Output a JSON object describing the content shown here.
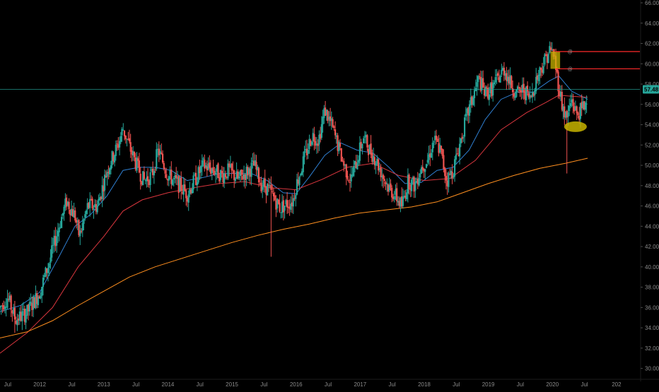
{
  "chart_data": {
    "type": "candlestick",
    "period": "weekly",
    "colors": {
      "background": "#000000",
      "up": "#26a69a",
      "down": "#ef5350",
      "ma_blue": "#2f7fd1",
      "ma_red": "#d9363e",
      "ma_orange": "#ff8f1f",
      "hline": "#26a69a",
      "level_red": "#ff2b2b",
      "zone": "#c8b400",
      "badge": "#26a69a",
      "tick": "#8a8a8a"
    },
    "y_range": [
      29.0,
      66.0
    ],
    "y_ticks": [
      "30.00",
      "32.00",
      "34.00",
      "36.00",
      "38.00",
      "40.00",
      "42.00",
      "44.00",
      "46.00",
      "48.00",
      "50.00",
      "52.00",
      "54.00",
      "56.00",
      "58.00",
      "60.00",
      "62.00",
      "64.00",
      "66.00"
    ],
    "x_range": [
      2011.38,
      2021.2
    ],
    "x_ticks": [
      {
        "label": "Jul",
        "t": 2011.5
      },
      {
        "label": "2012",
        "t": 2012.0
      },
      {
        "label": "Jul",
        "t": 2012.5
      },
      {
        "label": "2013",
        "t": 2013.0
      },
      {
        "label": "Jul",
        "t": 2013.5
      },
      {
        "label": "2014",
        "t": 2014.0
      },
      {
        "label": "Jul",
        "t": 2014.5
      },
      {
        "label": "2015",
        "t": 2015.0
      },
      {
        "label": "Jul",
        "t": 2015.5
      },
      {
        "label": "2016",
        "t": 2016.0
      },
      {
        "label": "Jul",
        "t": 2016.5
      },
      {
        "label": "2017",
        "t": 2017.0
      },
      {
        "label": "Jul",
        "t": 2017.5
      },
      {
        "label": "2018",
        "t": 2018.0
      },
      {
        "label": "Jul",
        "t": 2018.5
      },
      {
        "label": "2019",
        "t": 2019.0
      },
      {
        "label": "Jul",
        "t": 2019.5
      },
      {
        "label": "2020",
        "t": 2020.0
      },
      {
        "label": "Jul",
        "t": 2020.5
      },
      {
        "label": "202",
        "t": 2021.0
      }
    ],
    "anchors": [
      [
        2011.38,
        36.0
      ],
      [
        2011.5,
        37.0
      ],
      [
        2011.62,
        34.8
      ],
      [
        2011.8,
        35.5
      ],
      [
        2012.0,
        37.5
      ],
      [
        2012.15,
        40.5
      ],
      [
        2012.3,
        44.0
      ],
      [
        2012.42,
        46.5
      ],
      [
        2012.55,
        45.0
      ],
      [
        2012.62,
        43.0
      ],
      [
        2012.75,
        46.0
      ],
      [
        2012.9,
        46.0
      ],
      [
        2013.05,
        49.5
      ],
      [
        2013.22,
        52.0
      ],
      [
        2013.3,
        53.6
      ],
      [
        2013.42,
        51.5
      ],
      [
        2013.5,
        50.2
      ],
      [
        2013.62,
        48.5
      ],
      [
        2013.75,
        49.0
      ],
      [
        2013.85,
        51.5
      ],
      [
        2014.0,
        49.0
      ],
      [
        2014.15,
        48.2
      ],
      [
        2014.3,
        47.2
      ],
      [
        2014.4,
        48.3
      ],
      [
        2014.55,
        50.0
      ],
      [
        2014.7,
        49.6
      ],
      [
        2014.85,
        49.0
      ],
      [
        2014.95,
        49.5
      ],
      [
        2015.1,
        48.6
      ],
      [
        2015.2,
        49.2
      ],
      [
        2015.35,
        50.0
      ],
      [
        2015.45,
        48.2
      ],
      [
        2015.55,
        47.8
      ],
      [
        2015.65,
        46.8
      ],
      [
        2015.75,
        45.8
      ],
      [
        2015.85,
        46.2
      ],
      [
        2015.95,
        46.5
      ],
      [
        2016.0,
        48.0
      ],
      [
        2016.12,
        50.5
      ],
      [
        2016.25,
        53.0
      ],
      [
        2016.35,
        52.5
      ],
      [
        2016.45,
        55.5
      ],
      [
        2016.55,
        54.0
      ],
      [
        2016.65,
        52.0
      ],
      [
        2016.75,
        50.0
      ],
      [
        2016.85,
        48.5
      ],
      [
        2016.95,
        50.5
      ],
      [
        2017.05,
        52.8
      ],
      [
        2017.15,
        51.5
      ],
      [
        2017.25,
        50.5
      ],
      [
        2017.35,
        49.0
      ],
      [
        2017.45,
        47.8
      ],
      [
        2017.55,
        47.0
      ],
      [
        2017.65,
        46.0
      ],
      [
        2017.75,
        48.5
      ],
      [
        2017.85,
        48.0
      ],
      [
        2017.95,
        49.8
      ],
      [
        2018.05,
        50.5
      ],
      [
        2018.15,
        52.5
      ],
      [
        2018.25,
        51.5
      ],
      [
        2018.35,
        48.5
      ],
      [
        2018.45,
        49.5
      ],
      [
        2018.55,
        52.0
      ],
      [
        2018.65,
        54.5
      ],
      [
        2018.75,
        56.5
      ],
      [
        2018.85,
        58.5
      ],
      [
        2018.95,
        57.0
      ],
      [
        2019.05,
        57.5
      ],
      [
        2019.15,
        58.5
      ],
      [
        2019.25,
        59.5
      ],
      [
        2019.35,
        58.0
      ],
      [
        2019.45,
        57.0
      ],
      [
        2019.55,
        57.5
      ],
      [
        2019.65,
        56.5
      ],
      [
        2019.75,
        58.5
      ],
      [
        2019.85,
        60.0
      ],
      [
        2019.95,
        61.3
      ],
      [
        2020.02,
        61.0
      ],
      [
        2020.08,
        58.5
      ],
      [
        2020.15,
        56.0
      ],
      [
        2020.22,
        54.5
      ],
      [
        2020.3,
        56.5
      ],
      [
        2020.38,
        55.0
      ],
      [
        2020.46,
        55.5
      ],
      [
        2020.52,
        56.2
      ],
      [
        2020.55,
        57.5
      ]
    ],
    "moving_averages": [
      {
        "color": "ma_blue",
        "points": [
          [
            2011.38,
            35.6
          ],
          [
            2011.7,
            36.2
          ],
          [
            2012.0,
            37.5
          ],
          [
            2012.3,
            41.0
          ],
          [
            2012.55,
            44.0
          ],
          [
            2012.8,
            45.2
          ],
          [
            2013.05,
            47.0
          ],
          [
            2013.3,
            49.5
          ],
          [
            2013.55,
            49.8
          ],
          [
            2013.8,
            49.8
          ],
          [
            2014.05,
            49.5
          ],
          [
            2014.3,
            48.5
          ],
          [
            2014.55,
            48.8
          ],
          [
            2014.8,
            49.2
          ],
          [
            2015.05,
            49.2
          ],
          [
            2015.3,
            49.2
          ],
          [
            2015.55,
            48.5
          ],
          [
            2015.8,
            47.3
          ],
          [
            2016.0,
            47.2
          ],
          [
            2016.2,
            48.8
          ],
          [
            2016.45,
            51.0
          ],
          [
            2016.7,
            52.2
          ],
          [
            2016.95,
            51.5
          ],
          [
            2017.2,
            51.2
          ],
          [
            2017.45,
            49.8
          ],
          [
            2017.7,
            48.2
          ],
          [
            2017.95,
            48.3
          ],
          [
            2018.2,
            49.5
          ],
          [
            2018.45,
            49.8
          ],
          [
            2018.7,
            51.5
          ],
          [
            2018.95,
            54.5
          ],
          [
            2019.2,
            56.5
          ],
          [
            2019.45,
            57.2
          ],
          [
            2019.7,
            57.2
          ],
          [
            2019.95,
            58.3
          ],
          [
            2020.1,
            58.8
          ],
          [
            2020.3,
            57.3
          ],
          [
            2020.55,
            56.5
          ]
        ]
      },
      {
        "color": "ma_red",
        "points": [
          [
            2011.38,
            31.5
          ],
          [
            2011.8,
            33.5
          ],
          [
            2012.2,
            36.0
          ],
          [
            2012.6,
            40.0
          ],
          [
            2013.0,
            43.0
          ],
          [
            2013.3,
            45.5
          ],
          [
            2013.6,
            46.6
          ],
          [
            2014.0,
            47.3
          ],
          [
            2014.4,
            47.8
          ],
          [
            2014.8,
            48.2
          ],
          [
            2015.2,
            48.4
          ],
          [
            2015.6,
            47.8
          ],
          [
            2016.0,
            47.6
          ],
          [
            2016.4,
            48.6
          ],
          [
            2016.8,
            49.8
          ],
          [
            2017.2,
            50.2
          ],
          [
            2017.6,
            49.0
          ],
          [
            2018.0,
            48.5
          ],
          [
            2018.4,
            48.7
          ],
          [
            2018.8,
            50.5
          ],
          [
            2019.2,
            53.5
          ],
          [
            2019.6,
            55.2
          ],
          [
            2019.9,
            56.2
          ],
          [
            2020.1,
            56.9
          ],
          [
            2020.3,
            56.8
          ],
          [
            2020.55,
            56.7
          ]
        ]
      },
      {
        "color": "ma_orange",
        "points": [
          [
            2011.38,
            33.0
          ],
          [
            2011.8,
            33.6
          ],
          [
            2012.2,
            34.7
          ],
          [
            2012.6,
            36.2
          ],
          [
            2013.0,
            37.6
          ],
          [
            2013.4,
            39.0
          ],
          [
            2013.8,
            40.0
          ],
          [
            2014.2,
            40.8
          ],
          [
            2014.6,
            41.6
          ],
          [
            2015.0,
            42.4
          ],
          [
            2015.4,
            43.1
          ],
          [
            2015.8,
            43.7
          ],
          [
            2016.2,
            44.2
          ],
          [
            2016.6,
            44.8
          ],
          [
            2017.0,
            45.3
          ],
          [
            2017.4,
            45.6
          ],
          [
            2017.8,
            45.9
          ],
          [
            2018.2,
            46.4
          ],
          [
            2018.6,
            47.3
          ],
          [
            2019.0,
            48.2
          ],
          [
            2019.4,
            49.0
          ],
          [
            2019.8,
            49.7
          ],
          [
            2020.2,
            50.2
          ],
          [
            2020.55,
            50.7
          ]
        ]
      }
    ],
    "hline": {
      "y": 57.48,
      "label": "57.48"
    },
    "levels": [
      {
        "y": 61.2,
        "t_start": 2020.05,
        "label": "@"
      },
      {
        "y": 59.5,
        "t_start": 2020.05,
        "label": "@"
      }
    ],
    "zone": {
      "t0": 2019.97,
      "t1": 2020.12,
      "y0": 59.5,
      "y1": 61.2
    },
    "ellipse": {
      "t": 2020.36,
      "y": 53.8
    }
  }
}
